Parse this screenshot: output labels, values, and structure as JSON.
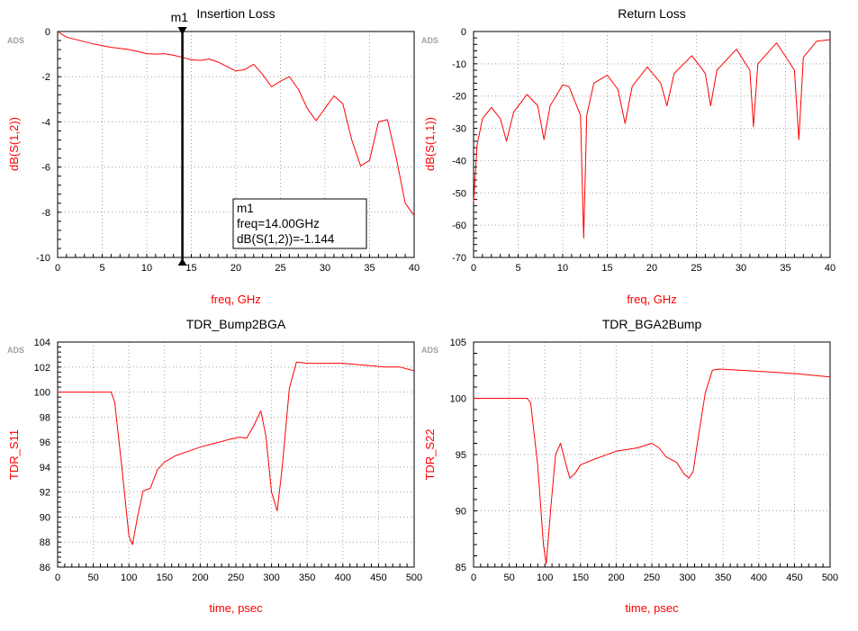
{
  "brand_label": "ADS",
  "colors": {
    "trace": "#ff0000",
    "axis_label": "#ff0000",
    "grid": "#a0a0a0",
    "frame": "#000000",
    "brand": "#a0a0a0"
  },
  "chart_data": [
    {
      "type": "line",
      "title": "Insertion Loss",
      "xlabel": "freq, GHz",
      "ylabel": "dB(S(1,2))",
      "xlim": [
        0,
        40
      ],
      "ylim": [
        -10,
        0
      ],
      "xticks": [
        0,
        5,
        10,
        15,
        20,
        25,
        30,
        35,
        40
      ],
      "yticks": [
        -10,
        -8,
        -6,
        -4,
        -2,
        0
      ],
      "grid": true,
      "series": [
        {
          "x": [
            0,
            1,
            2,
            3,
            4,
            5,
            6,
            7,
            8,
            9,
            10,
            11,
            12,
            13,
            14,
            15,
            16,
            17,
            18,
            19,
            20,
            21,
            22,
            23,
            24,
            25,
            26,
            27,
            28,
            29,
            30,
            31,
            32,
            33,
            34,
            35,
            36,
            37,
            38,
            39,
            40
          ],
          "y": [
            0,
            -0.25,
            -0.35,
            -0.45,
            -0.55,
            -0.62,
            -0.7,
            -0.75,
            -0.8,
            -0.88,
            -0.98,
            -1.0,
            -0.98,
            -1.05,
            -1.144,
            -1.25,
            -1.28,
            -1.22,
            -1.35,
            -1.55,
            -1.75,
            -1.68,
            -1.45,
            -1.9,
            -2.45,
            -2.2,
            -2.0,
            -2.55,
            -3.4,
            -3.95,
            -3.4,
            -2.85,
            -3.2,
            -4.8,
            -5.95,
            -5.7,
            -4.0,
            -3.9,
            -5.6,
            -7.6,
            -8.15
          ]
        }
      ],
      "marker": {
        "name": "m1",
        "freq": "14.00GHz",
        "value": "-1.144",
        "x": 14,
        "y": -1.144,
        "box": [
          "m1",
          "freq=14.00GHz",
          "dB(S(1,2))=-1.144"
        ]
      }
    },
    {
      "type": "line",
      "title": "Return Loss",
      "xlabel": "freq, GHz",
      "ylabel": "dB(S(1,1))",
      "xlim": [
        0,
        40
      ],
      "ylim": [
        -70,
        0
      ],
      "xticks": [
        0,
        5,
        10,
        15,
        20,
        25,
        30,
        35,
        40
      ],
      "yticks": [
        -70,
        -60,
        -50,
        -40,
        -30,
        -20,
        -10,
        0
      ],
      "grid": true,
      "series": [
        {
          "x": [
            0,
            0.4,
            1,
            2,
            3,
            3.7,
            4.5,
            6,
            7.2,
            7.9,
            8.6,
            10,
            10.7,
            12,
            12.35,
            12.7,
            13.5,
            15,
            16.2,
            17.0,
            17.8,
            19.5,
            21,
            21.7,
            22.5,
            24.5,
            26,
            26.6,
            27.3,
            29.5,
            31,
            31.4,
            31.9,
            34,
            36,
            36.5,
            37,
            38.5,
            40
          ],
          "y": [
            -53,
            -35,
            -27,
            -23.5,
            -27,
            -34,
            -25,
            -19.5,
            -23,
            -33.5,
            -23,
            -16.5,
            -17,
            -26,
            -64,
            -26,
            -16,
            -13.5,
            -18,
            -28.5,
            -17,
            -11,
            -16,
            -23,
            -13,
            -7.5,
            -13,
            -23,
            -12,
            -5.5,
            -12,
            -29.5,
            -10,
            -3.5,
            -12,
            -33.5,
            -8,
            -3,
            -2.5
          ]
        }
      ]
    },
    {
      "type": "line",
      "title": "TDR_Bump2BGA",
      "xlabel": "time, psec",
      "ylabel": "TDR_S11",
      "xlim": [
        0,
        500
      ],
      "ylim": [
        86,
        104
      ],
      "xticks": [
        0,
        50,
        100,
        150,
        200,
        250,
        300,
        350,
        400,
        450,
        500
      ],
      "yticks": [
        86,
        88,
        90,
        92,
        94,
        96,
        98,
        100,
        102,
        104
      ],
      "grid": true,
      "series": [
        {
          "x": [
            0,
            50,
            70,
            75,
            80,
            90,
            100,
            105,
            112,
            120,
            130,
            140,
            150,
            165,
            180,
            200,
            220,
            240,
            255,
            265,
            275,
            285,
            292,
            300,
            308,
            315,
            325,
            335,
            350,
            400,
            440,
            460,
            480,
            500
          ],
          "y": [
            100,
            100,
            100,
            100,
            99.2,
            94,
            88.5,
            87.8,
            90,
            92.1,
            92.3,
            93.8,
            94.4,
            94.9,
            95.2,
            95.6,
            95.9,
            96.2,
            96.4,
            96.3,
            97.3,
            98.5,
            96.5,
            92,
            90.5,
            94,
            100.3,
            102.4,
            102.3,
            102.3,
            102.1,
            102,
            102,
            101.7
          ]
        }
      ]
    },
    {
      "type": "line",
      "title": "TDR_BGA2Bump",
      "xlabel": "time, psec",
      "ylabel": "TDR_S22",
      "xlim": [
        0,
        500
      ],
      "ylim": [
        85,
        105
      ],
      "xticks": [
        0,
        50,
        100,
        150,
        200,
        250,
        300,
        350,
        400,
        450,
        500
      ],
      "yticks": [
        85,
        90,
        95,
        100,
        105
      ],
      "grid": true,
      "series": [
        {
          "x": [
            0,
            50,
            70,
            75,
            80,
            90,
            98,
            102,
            108,
            115,
            122,
            128,
            135,
            142,
            150,
            170,
            200,
            230,
            250,
            260,
            270,
            285,
            295,
            302,
            308,
            315,
            325,
            335,
            345,
            400,
            450,
            500
          ],
          "y": [
            100,
            100,
            100,
            100,
            99.6,
            94,
            87,
            85.3,
            90,
            95,
            96,
            94.5,
            92.9,
            93.3,
            94.1,
            94.6,
            95.3,
            95.6,
            96,
            95.6,
            94.8,
            94.3,
            93.3,
            92.9,
            93.5,
            96.5,
            100.5,
            102.5,
            102.6,
            102.4,
            102.2,
            101.9
          ]
        }
      ]
    }
  ]
}
